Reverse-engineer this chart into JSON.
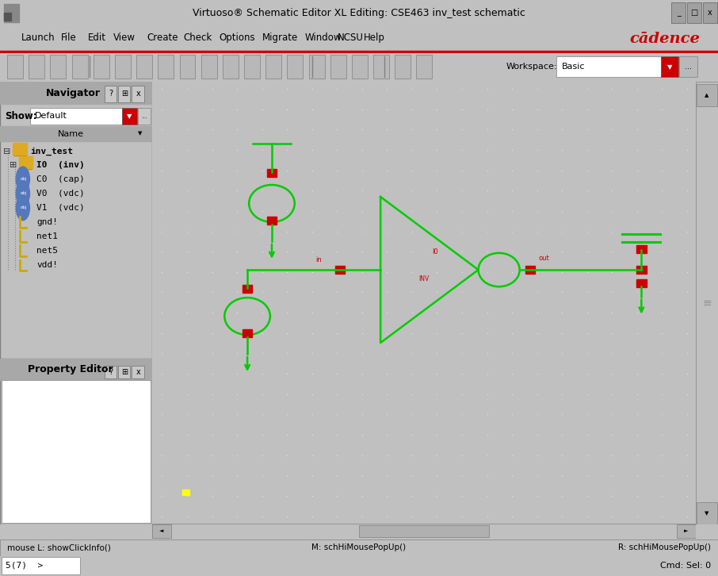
{
  "title": "Virtuoso® Schematic Editor XL Editing: CSE463 inv_test schematic",
  "menu_items": [
    "Launch",
    "File",
    "Edit",
    "View",
    "Create",
    "Check",
    "Options",
    "Migrate",
    "Window",
    "NCSU",
    "Help"
  ],
  "cadence_logo": "cādence",
  "nav_title": "Navigator",
  "nav_show_label": "Show:",
  "nav_show_value": "Default",
  "prop_title": "Property Editor",
  "status_left": "mouse L: showClickInfo()",
  "status_mid": "M: schHiMousePopUp()",
  "status_right": "R: schHiMousePopUp()",
  "status_bar_left": "5(7)  >",
  "status_bar_cmd": "Cmd: Sel: 0",
  "workspace_label": "Workspace:",
  "workspace_value": "Basic",
  "ui_bg": "#c0c0c0",
  "green": "#00cc00",
  "red": "#cc0000"
}
